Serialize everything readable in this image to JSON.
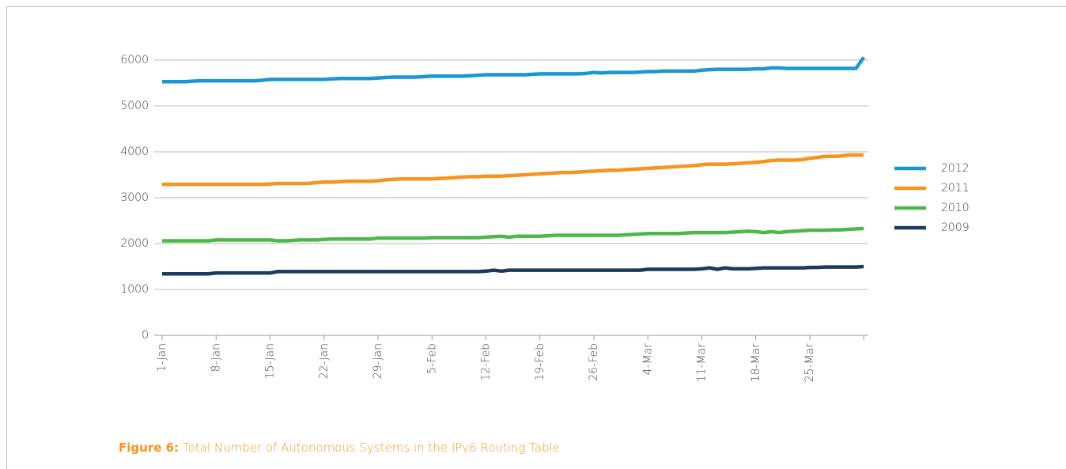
{
  "chart_data": {
    "type": "line",
    "caption_label": "Figure 6:",
    "caption": "Total Number of Autonomous Systems in the IPv6 Routing Table",
    "categories": [
      "1-Jan",
      null,
      null,
      null,
      null,
      null,
      null,
      "8-Jan",
      null,
      null,
      null,
      null,
      null,
      null,
      "15-Jan",
      null,
      null,
      null,
      null,
      null,
      null,
      "22-Jan",
      null,
      null,
      null,
      null,
      null,
      null,
      "29-Jan",
      null,
      null,
      null,
      null,
      null,
      null,
      "5-Feb",
      null,
      null,
      null,
      null,
      null,
      null,
      "12-Feb",
      null,
      null,
      null,
      null,
      null,
      null,
      "19-Feb",
      null,
      null,
      null,
      null,
      null,
      null,
      "26-Feb",
      null,
      null,
      null,
      null,
      null,
      null,
      "4-Mar",
      null,
      null,
      null,
      null,
      null,
      null,
      "11-Mar",
      null,
      null,
      null,
      null,
      null,
      null,
      "18-Mar",
      null,
      null,
      null,
      null,
      null,
      null,
      "25-Mar",
      null,
      null,
      null,
      null,
      null,
      null,
      null
    ],
    "series": [
      {
        "name": "2012",
        "color": "#1a96d4",
        "values": [
          5530,
          5530,
          5530,
          5530,
          5540,
          5550,
          5550,
          5550,
          5550,
          5550,
          5550,
          5550,
          5550,
          5560,
          5580,
          5580,
          5580,
          5580,
          5580,
          5580,
          5580,
          5580,
          5590,
          5600,
          5600,
          5600,
          5600,
          5600,
          5610,
          5620,
          5630,
          5630,
          5630,
          5630,
          5640,
          5650,
          5650,
          5650,
          5650,
          5650,
          5660,
          5670,
          5680,
          5680,
          5680,
          5680,
          5680,
          5680,
          5690,
          5700,
          5700,
          5700,
          5700,
          5700,
          5700,
          5710,
          5730,
          5720,
          5730,
          5730,
          5730,
          5730,
          5740,
          5750,
          5750,
          5760,
          5760,
          5760,
          5760,
          5760,
          5780,
          5790,
          5800,
          5800,
          5800,
          5800,
          5800,
          5810,
          5810,
          5830,
          5830,
          5820,
          5820,
          5820,
          5820,
          5820,
          5820,
          5820,
          5820,
          5820,
          5820,
          6060
        ]
      },
      {
        "name": "2011",
        "color": "#f7941d",
        "values": [
          3290,
          3290,
          3290,
          3290,
          3290,
          3290,
          3290,
          3290,
          3290,
          3290,
          3290,
          3290,
          3290,
          3290,
          3300,
          3310,
          3310,
          3310,
          3310,
          3310,
          3330,
          3340,
          3340,
          3350,
          3360,
          3360,
          3360,
          3360,
          3370,
          3390,
          3400,
          3410,
          3410,
          3410,
          3410,
          3410,
          3420,
          3430,
          3440,
          3450,
          3460,
          3460,
          3470,
          3470,
          3470,
          3480,
          3490,
          3500,
          3510,
          3520,
          3530,
          3540,
          3550,
          3550,
          3560,
          3570,
          3580,
          3590,
          3600,
          3600,
          3610,
          3620,
          3630,
          3640,
          3650,
          3660,
          3670,
          3680,
          3690,
          3700,
          3720,
          3730,
          3730,
          3730,
          3740,
          3750,
          3760,
          3770,
          3790,
          3810,
          3820,
          3820,
          3820,
          3830,
          3860,
          3880,
          3900,
          3900,
          3910,
          3930,
          3930,
          3930
        ]
      },
      {
        "name": "2010",
        "color": "#4cb848",
        "values": [
          2060,
          2060,
          2060,
          2060,
          2060,
          2060,
          2060,
          2080,
          2080,
          2080,
          2080,
          2080,
          2080,
          2080,
          2080,
          2060,
          2060,
          2070,
          2080,
          2080,
          2080,
          2090,
          2100,
          2100,
          2100,
          2100,
          2100,
          2100,
          2120,
          2120,
          2120,
          2120,
          2120,
          2120,
          2120,
          2130,
          2130,
          2130,
          2130,
          2130,
          2130,
          2130,
          2140,
          2150,
          2160,
          2140,
          2160,
          2160,
          2160,
          2160,
          2170,
          2180,
          2180,
          2180,
          2180,
          2180,
          2180,
          2180,
          2180,
          2180,
          2190,
          2200,
          2210,
          2220,
          2220,
          2220,
          2220,
          2220,
          2230,
          2240,
          2240,
          2240,
          2240,
          2240,
          2250,
          2260,
          2270,
          2260,
          2240,
          2260,
          2240,
          2260,
          2270,
          2280,
          2290,
          2290,
          2290,
          2300,
          2300,
          2310,
          2320,
          2330
        ]
      },
      {
        "name": "2009",
        "color": "#1b3a5c",
        "values": [
          1340,
          1340,
          1340,
          1340,
          1340,
          1340,
          1340,
          1360,
          1360,
          1360,
          1360,
          1360,
          1360,
          1360,
          1360,
          1390,
          1390,
          1390,
          1390,
          1390,
          1390,
          1390,
          1390,
          1390,
          1390,
          1390,
          1390,
          1390,
          1390,
          1390,
          1390,
          1390,
          1390,
          1390,
          1390,
          1390,
          1390,
          1390,
          1390,
          1390,
          1390,
          1390,
          1400,
          1420,
          1400,
          1420,
          1420,
          1420,
          1420,
          1420,
          1420,
          1420,
          1420,
          1420,
          1420,
          1420,
          1420,
          1420,
          1420,
          1420,
          1420,
          1420,
          1420,
          1440,
          1440,
          1440,
          1440,
          1440,
          1440,
          1440,
          1450,
          1470,
          1440,
          1470,
          1450,
          1450,
          1450,
          1460,
          1470,
          1470,
          1470,
          1470,
          1470,
          1470,
          1480,
          1480,
          1490,
          1490,
          1490,
          1490,
          1490,
          1500
        ]
      }
    ],
    "ylim": [
      0,
      6000
    ],
    "yticks": [
      0,
      1000,
      2000,
      3000,
      4000,
      5000,
      6000
    ],
    "grid": true,
    "legend": "right"
  }
}
